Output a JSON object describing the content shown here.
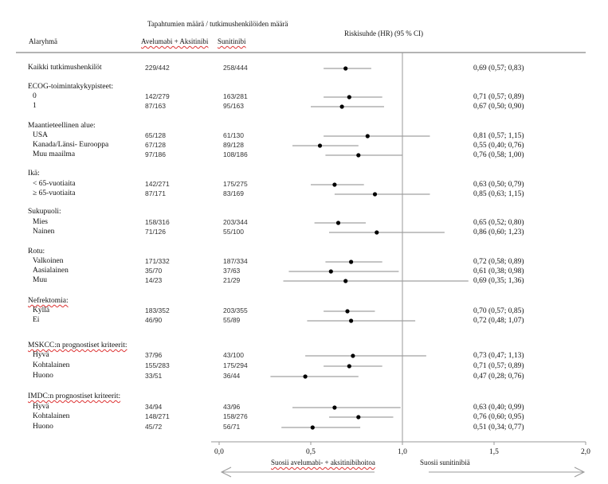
{
  "chart_data": {
    "type": "forest",
    "title": "Tapahtumien määrä / tutkimushenkilöiden määrä",
    "columns": {
      "subgroup": "Alaryhmä",
      "arm1": "Avelumabi + Aksitinibi",
      "arm2": "Sunitinibi",
      "hr": "Riskisuhde (HR) (95 % CI)"
    },
    "xlim": [
      0.0,
      2.0
    ],
    "reference_line": 1.0,
    "xticks": [
      "0,0",
      "0,5",
      "1,0",
      "1,5",
      "2,0"
    ],
    "xtick_values": [
      0.0,
      0.5,
      1.0,
      1.5,
      2.0
    ],
    "favors_left": "Suosii avelumabi- + aksitinibihoitoa",
    "favors_right": "Suosii sunitinibiä",
    "groups": [
      {
        "label": "",
        "rows": [
          {
            "label": "Kaikki tutkimushenkilöt",
            "arm1": "229/442",
            "arm2": "258/444",
            "hr": 0.69,
            "lo": 0.57,
            "hi": 0.83,
            "text": "0,69 (0,57; 0,83)"
          }
        ]
      },
      {
        "label": "ECOG-toimintakykypisteet:",
        "rows": [
          {
            "label": "0",
            "arm1": "142/279",
            "arm2": "163/281",
            "hr": 0.71,
            "lo": 0.57,
            "hi": 0.89,
            "text": "0,71 (0,57; 0,89)"
          },
          {
            "label": "1",
            "arm1": "87/163",
            "arm2": "95/163",
            "hr": 0.67,
            "lo": 0.5,
            "hi": 0.9,
            "text": "0,67 (0,50; 0,90)"
          }
        ]
      },
      {
        "label": "Maantieteellinen alue:",
        "rows": [
          {
            "label": "USA",
            "arm1": "65/128",
            "arm2": "61/130",
            "hr": 0.81,
            "lo": 0.57,
            "hi": 1.15,
            "text": "0,81 (0,57; 1,15)"
          },
          {
            "label": "Kanada/Länsi- Eurooppa",
            "arm1": "67/128",
            "arm2": "89/128",
            "hr": 0.55,
            "lo": 0.4,
            "hi": 0.76,
            "text": "0,55 (0,40; 0,76)"
          },
          {
            "label": "Muu maailma",
            "arm1": "97/186",
            "arm2": "108/186",
            "hr": 0.76,
            "lo": 0.58,
            "hi": 1.0,
            "text": "0,76 (0,58; 1,00)"
          }
        ]
      },
      {
        "label": "Ikä:",
        "rows": [
          {
            "label": "< 65-vuotiaita",
            "arm1": "142/271",
            "arm2": "175/275",
            "hr": 0.63,
            "lo": 0.5,
            "hi": 0.79,
            "text": "0,63 (0,50; 0,79)"
          },
          {
            "label": "≥ 65-vuotiaita",
            "arm1": "87/171",
            "arm2": "83/169",
            "hr": 0.85,
            "lo": 0.63,
            "hi": 1.15,
            "text": "0,85 (0,63; 1,15)"
          }
        ]
      },
      {
        "label": "Sukupuoli:",
        "rows": [
          {
            "label": "Mies",
            "arm1": "158/316",
            "arm2": "203/344",
            "hr": 0.65,
            "lo": 0.52,
            "hi": 0.8,
            "text": "0,65 (0,52; 0,80)"
          },
          {
            "label": "Nainen",
            "arm1": "71/126",
            "arm2": "55/100",
            "hr": 0.86,
            "lo": 0.6,
            "hi": 1.23,
            "text": "0,86 (0,60; 1,23)"
          }
        ]
      },
      {
        "label": "Rotu:",
        "rows": [
          {
            "label": "Valkoinen",
            "arm1": "171/332",
            "arm2": "187/334",
            "hr": 0.72,
            "lo": 0.58,
            "hi": 0.89,
            "text": "0,72 (0,58; 0,89)"
          },
          {
            "label": "Aasialainen",
            "arm1": "35/70",
            "arm2": "37/63",
            "hr": 0.61,
            "lo": 0.38,
            "hi": 0.98,
            "text": "0,61 (0,38; 0,98)"
          },
          {
            "label": "Muu",
            "arm1": "14/23",
            "arm2": "21/29",
            "hr": 0.69,
            "lo": 0.35,
            "hi": 1.36,
            "text": "0,69 (0,35; 1,36)"
          }
        ]
      },
      {
        "label": "Nefrektomia:",
        "rows": [
          {
            "label": "Kyllä",
            "arm1": "183/352",
            "arm2": "203/355",
            "hr": 0.7,
            "lo": 0.57,
            "hi": 0.85,
            "text": "0,70 (0,57; 0,85)"
          },
          {
            "label": "Ei",
            "arm1": "46/90",
            "arm2": "55/89",
            "hr": 0.72,
            "lo": 0.48,
            "hi": 1.07,
            "text": "0,72 (0,48; 1,07)"
          }
        ]
      },
      {
        "label": "MSKCC:n prognostiset kriteerit:",
        "rows": [
          {
            "label": "Hyvä",
            "arm1": "37/96",
            "arm2": "43/100",
            "hr": 0.73,
            "lo": 0.47,
            "hi": 1.13,
            "text": "0,73 (0,47; 1,13)"
          },
          {
            "label": "Kohtalainen",
            "arm1": "155/283",
            "arm2": "175/294",
            "hr": 0.71,
            "lo": 0.57,
            "hi": 0.89,
            "text": "0,71 (0,57; 0,89)"
          },
          {
            "label": "Huono",
            "arm1": "33/51",
            "arm2": "36/44",
            "hr": 0.47,
            "lo": 0.28,
            "hi": 0.76,
            "text": "0,47 (0,28; 0,76)"
          }
        ]
      },
      {
        "label": "IMDC:n prognostiset kriteerit:",
        "rows": [
          {
            "label": "Hyvä",
            "arm1": "34/94",
            "arm2": "43/96",
            "hr": 0.63,
            "lo": 0.4,
            "hi": 0.99,
            "text": "0,63 (0,40; 0,99)"
          },
          {
            "label": "Kohtalainen",
            "arm1": "148/271",
            "arm2": "158/276",
            "hr": 0.76,
            "lo": 0.6,
            "hi": 0.95,
            "text": "0,76 (0,60; 0,95)"
          },
          {
            "label": "Huono",
            "arm1": "45/72",
            "arm2": "56/71",
            "hr": 0.51,
            "lo": 0.34,
            "hi": 0.77,
            "text": "0,51 (0,34; 0,77)"
          }
        ]
      }
    ]
  },
  "colors": {
    "ci_line": "#8a8a8a",
    "point": "#000000",
    "axis": "#9a9a9a",
    "spellcheck": "#d33333"
  }
}
